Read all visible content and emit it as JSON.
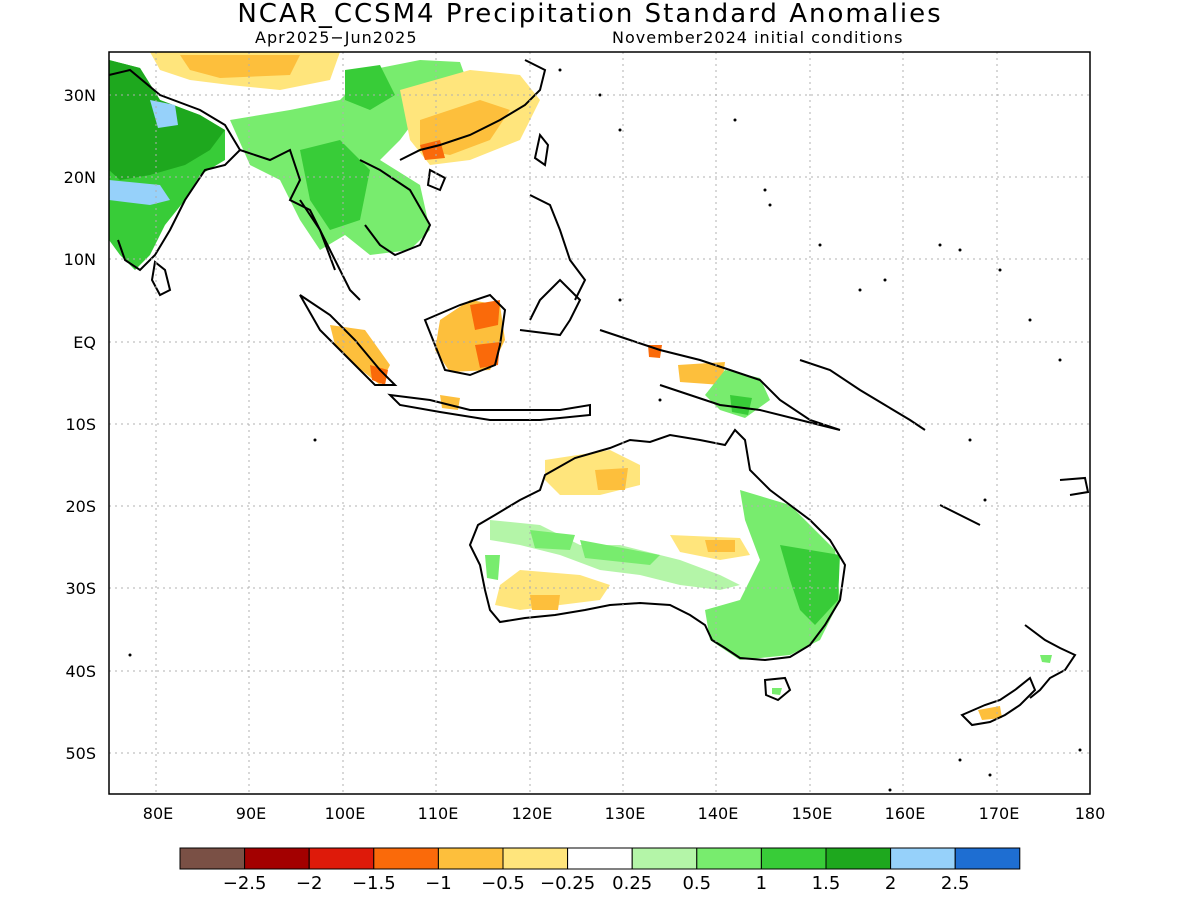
{
  "title": "NCAR_CCSM4 Precipitation Standard Anomalies",
  "subtitle_left": "Apr2025−Jun2025",
  "subtitle_right": "November2024 initial conditions",
  "lat_labels": [
    "30N",
    "20N",
    "10N",
    "EQ",
    "10S",
    "20S",
    "30S",
    "40S",
    "50S"
  ],
  "lon_labels": [
    "80E",
    "90E",
    "100E",
    "110E",
    "120E",
    "130E",
    "140E",
    "150E",
    "160E",
    "170E",
    "180"
  ],
  "colorbar": {
    "colors": [
      "#7a5045",
      "#a30000",
      "#de1a0a",
      "#fa6a0a",
      "#fdbf3c",
      "#ffe57c",
      "#ffffff",
      "#b4f5a8",
      "#78ec6e",
      "#38cc38",
      "#1ea81e",
      "#96d1fa",
      "#1e6ed2"
    ],
    "labels": [
      "−2.5",
      "−2",
      "−1.5",
      "−1",
      "−0.5",
      "−0.25",
      "0.25",
      "0.5",
      "1",
      "1.5",
      "2",
      "2.5"
    ]
  }
}
